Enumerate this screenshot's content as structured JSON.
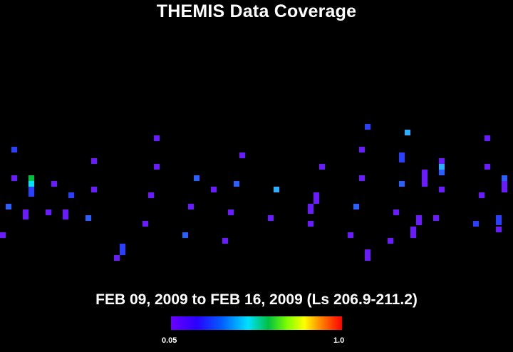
{
  "title": "THEMIS Data Coverage",
  "date_range": "FEB 09, 2009 to FEB 16, 2009 (Ls 206.9-211.2)",
  "colorbar": {
    "min_label": "0.05",
    "max_label": "1.0"
  },
  "coverage_points": [
    {
      "c": "#6a1cff"
    },
    {
      "c": "#2a40ff"
    },
    {
      "c": "#00c040"
    },
    {
      "c": "#00e0ff"
    },
    {
      "c": "#2a40ff"
    },
    {
      "c": "#6a1cff"
    },
    {
      "c": "#2a40ff"
    },
    {
      "c": "#6a1cff"
    },
    {
      "c": "#6a1cff"
    },
    {
      "c": "#6a1cff"
    },
    {
      "c": "#6a1cff"
    },
    {
      "c": "#6a1cff"
    },
    {
      "c": "#2a60ff"
    },
    {
      "c": "#6a1cff"
    },
    {
      "c": "#6a1cff"
    },
    {
      "c": "#6a1cff"
    },
    {
      "c": "#2a60ff"
    },
    {
      "c": "#6a1cff"
    },
    {
      "c": "#2a60ff"
    },
    {
      "c": "#6a1cff"
    },
    {
      "c": "#6a1cff"
    },
    {
      "c": "#2a60ff"
    },
    {
      "c": "#6a1cff"
    },
    {
      "c": "#6a1cff"
    },
    {
      "c": "#2a60ff"
    },
    {
      "c": "#6a1cff"
    },
    {
      "c": "#6a1cff"
    },
    {
      "c": "#2ab0ff"
    },
    {
      "c": "#6a1cff"
    },
    {
      "c": "#6a1cff"
    },
    {
      "c": "#6a1cff"
    },
    {
      "c": "#6a1cff"
    },
    {
      "c": "#6a1cff"
    },
    {
      "c": "#6a1cff"
    },
    {
      "c": "#2a40ff"
    },
    {
      "c": "#6a1cff"
    },
    {
      "c": "#2a40ff"
    },
    {
      "c": "#6a1cff"
    },
    {
      "c": "#6a1cff"
    },
    {
      "c": "#2a60ff"
    },
    {
      "c": "#6a1cff"
    },
    {
      "c": "#6a1cff"
    },
    {
      "c": "#2ab0ff"
    },
    {
      "c": "#2a40ff"
    },
    {
      "c": "#6a1cff"
    },
    {
      "c": "#2a60ff"
    },
    {
      "c": "#6a1cff"
    },
    {
      "c": "#6a1cff"
    },
    {
      "c": "#6a1cff"
    },
    {
      "c": "#6a1cff"
    },
    {
      "c": "#6a1cff"
    },
    {
      "c": "#6a1cff"
    },
    {
      "c": "#2ab0ff"
    },
    {
      "c": "#2a60ff"
    },
    {
      "c": "#6a1cff"
    },
    {
      "c": "#6a1cff"
    },
    {
      "c": "#6a1cff"
    },
    {
      "c": "#2a40ff"
    },
    {
      "c": "#2a60ff"
    },
    {
      "c": "#6a1cff"
    },
    {
      "c": "#2a40ff"
    },
    {
      "c": "#6a1cff"
    }
  ]
}
